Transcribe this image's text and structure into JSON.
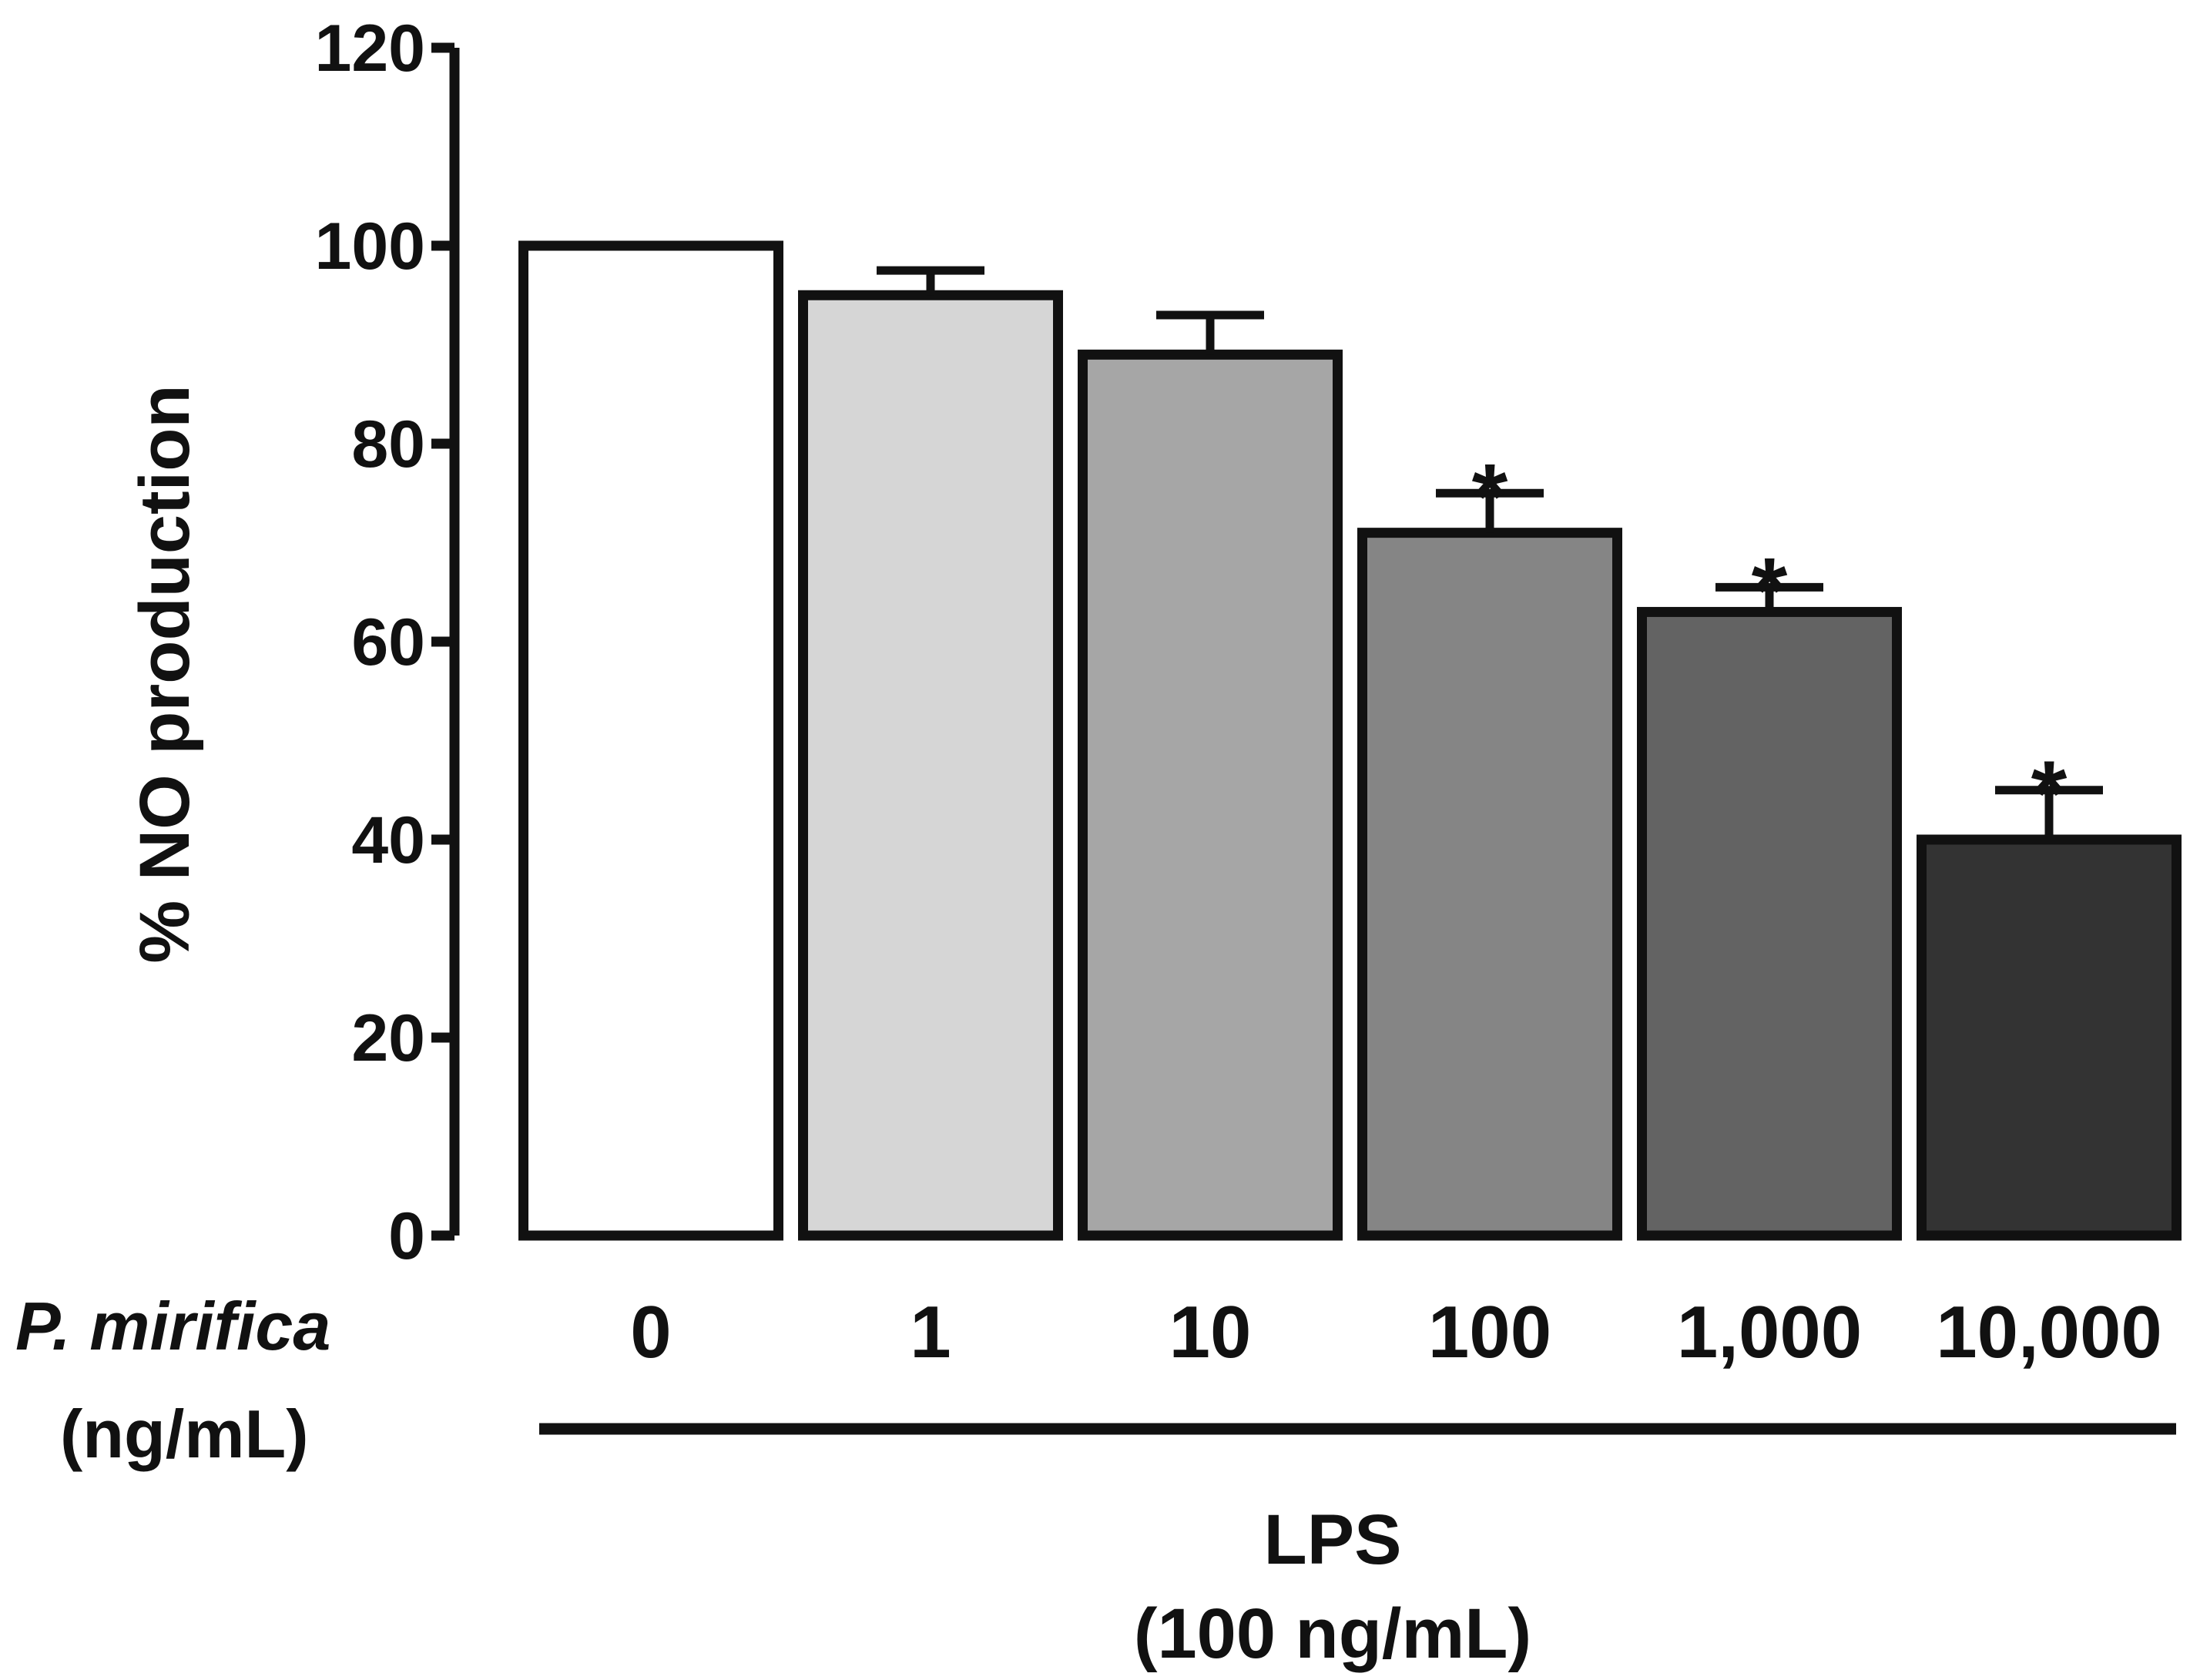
{
  "chart_data": {
    "type": "bar",
    "title": "",
    "ylabel": "% NO production",
    "xlabel": "",
    "ylim": [
      0,
      120
    ],
    "yticks": [
      0,
      20,
      40,
      60,
      80,
      100,
      120
    ],
    "grid": false,
    "categories": [
      "0",
      "1",
      "10",
      "100",
      "1,000",
      "10,000"
    ],
    "values": [
      100,
      95,
      89,
      71,
      63,
      40
    ],
    "error": [
      0,
      2.5,
      4,
      4,
      2.5,
      5
    ],
    "significance": [
      "",
      "",
      "",
      "*",
      "*",
      "*"
    ],
    "bar_colors": [
      "#ffffff",
      "#d6d6d6",
      "#a6a6a6",
      "#858585",
      "#636363",
      "#333333"
    ],
    "row_label": {
      "name": "P. mirifica",
      "unit": "(ng/mL)"
    },
    "treatment": {
      "name": "LPS",
      "dose": "(100 ng/mL)"
    }
  }
}
